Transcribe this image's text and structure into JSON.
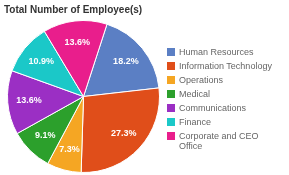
{
  "chart_data": {
    "type": "pie",
    "title": "Total Number of Employee(s)",
    "categories": [
      "Human Resources",
      "Information Technology",
      "Operations",
      "Medical",
      "Communications",
      "Finance",
      "Corporate and CEO\nOffice"
    ],
    "values": [
      18.2,
      27.3,
      7.3,
      9.1,
      13.6,
      10.9,
      13.6
    ],
    "value_labels": [
      "18.2%",
      "27.3%",
      "7.3%",
      "9.1%",
      "13.6%",
      "10.9%",
      "13.6%"
    ],
    "colors": [
      "#5B7FC4",
      "#E04E1A",
      "#F5A623",
      "#2CA02C",
      "#9B2FC4",
      "#1BC8C8",
      "#E91E8C"
    ],
    "data_labels": true,
    "legend": "right"
  }
}
